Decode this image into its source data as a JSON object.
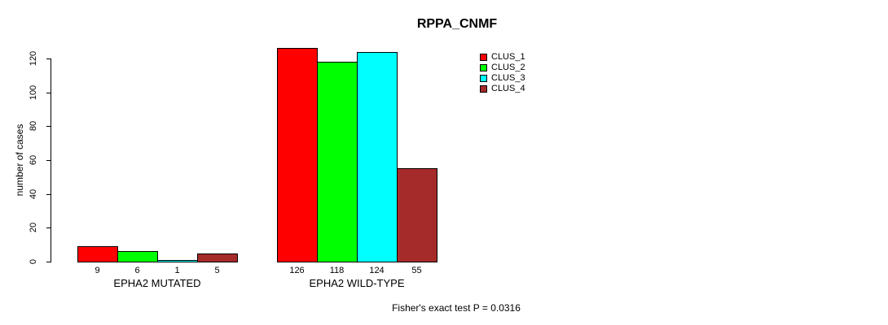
{
  "title": "RPPA_CNMF",
  "footer": "Fisher's exact test P = 0.0316",
  "chart_data": {
    "type": "bar",
    "title": "RPPA_CNMF",
    "xlabel": "",
    "ylabel": "number of cases",
    "ylim": [
      0,
      130
    ],
    "yticks": [
      0,
      20,
      40,
      60,
      80,
      100,
      120
    ],
    "grid": false,
    "legend_position": "top-right",
    "bar_border_color": "#000000",
    "categories": [
      "EPHA2 MUTATED",
      "EPHA2 WILD-TYPE"
    ],
    "series": [
      {
        "name": "CLUS_1",
        "color": "#ff0000",
        "values": [
          9,
          126
        ]
      },
      {
        "name": "CLUS_2",
        "color": "#00ff00",
        "values": [
          6,
          118
        ]
      },
      {
        "name": "CLUS_3",
        "color": "#00ffff",
        "values": [
          1,
          124
        ]
      },
      {
        "name": "CLUS_4",
        "color": "#a52a2a",
        "values": [
          5,
          55
        ]
      }
    ],
    "bar_value_labels_shown": true,
    "annotation": "Fisher's exact test P = 0.0316"
  }
}
